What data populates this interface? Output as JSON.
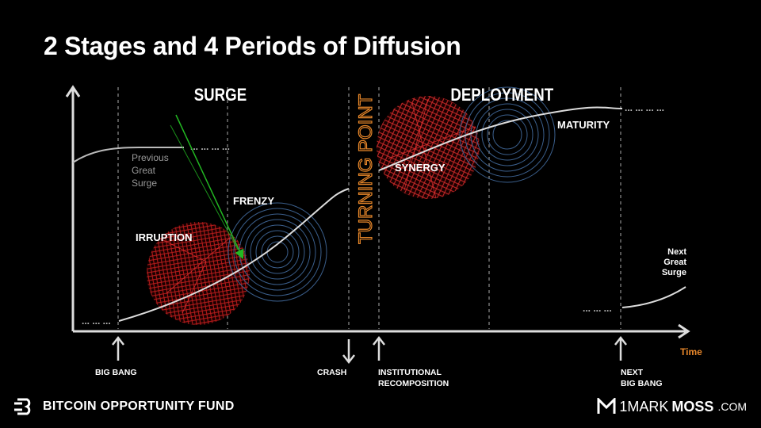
{
  "title": "2 Stages and 4 Periods of Diffusion",
  "stages": {
    "surge": "SURGE",
    "deployment": "DEPLOYMENT"
  },
  "turning_point": "TURNING POINT",
  "periods": {
    "irruption": "IRRUPTION",
    "frenzy": "FRENZY",
    "synergy": "SYNERGY",
    "maturity": "MATURITY"
  },
  "previous_surge": [
    "Previous",
    "Great",
    "Surge"
  ],
  "next_surge": [
    "Next",
    "Great",
    "Surge"
  ],
  "axis": {
    "x_label": "Time"
  },
  "events": {
    "big_bang": "BIG BANG",
    "crash": "CRASH",
    "institutional": [
      "INSTITUTIONAL",
      "RECOMPOSITION"
    ],
    "next_big_bang": [
      "NEXT",
      "BIG BANG"
    ]
  },
  "footer": {
    "fund_name": "BITCOIN OPPORTUNITY FUND",
    "brand_prefix": "1MARK",
    "brand_main": "MOSS",
    "brand_suffix": ".COM"
  },
  "colors": {
    "accent_orange": "#e8872a",
    "red": "#c41d1d",
    "blue": "#3b5f8c",
    "green": "#22b822"
  }
}
